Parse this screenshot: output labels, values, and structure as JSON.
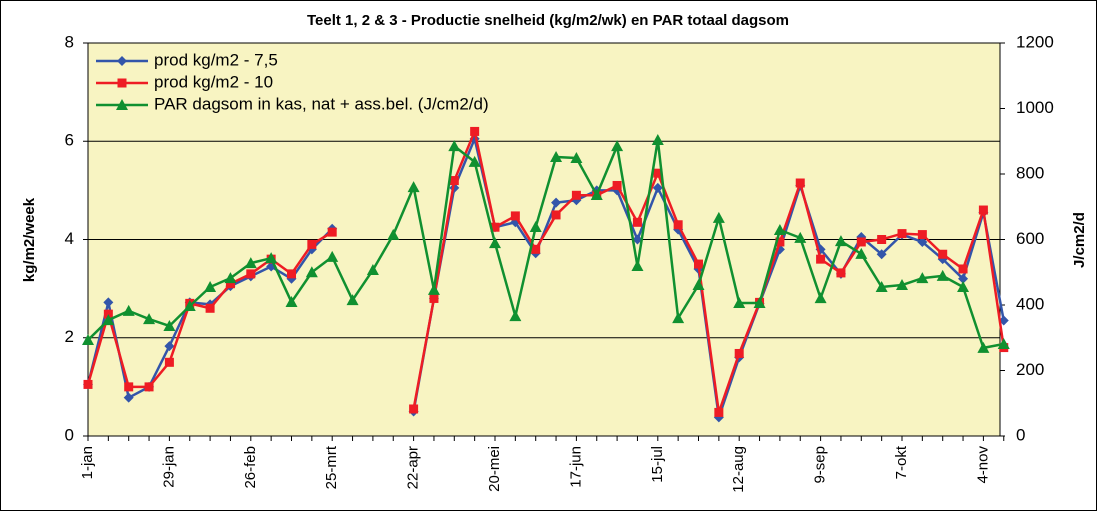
{
  "chart_data": {
    "type": "line",
    "title": "Teelt 1, 2 & 3 - Productie snelheid (kg/m2/wk) en PAR totaal dagsom",
    "ylabel": "kg/m2/week",
    "y2label": "J/cm2/d",
    "categories": [
      "1-jan",
      null,
      null,
      null,
      "29-jan",
      null,
      null,
      null,
      "26-feb",
      null,
      null,
      null,
      "25-mrt",
      null,
      null,
      null,
      "22-apr",
      null,
      null,
      null,
      "20-mei",
      null,
      null,
      null,
      "17-jun",
      null,
      null,
      null,
      "15-jul",
      null,
      null,
      null,
      "12-aug",
      null,
      null,
      null,
      "9-sep",
      null,
      null,
      null,
      "7-okt",
      null,
      null,
      null,
      "4-nov",
      null
    ],
    "ylim": [
      0,
      8
    ],
    "yticks": [
      0,
      2,
      4,
      6,
      8
    ],
    "y2lim": [
      0,
      1200
    ],
    "y2ticks": [
      0,
      200,
      400,
      600,
      800,
      1000,
      1200
    ],
    "grid": true,
    "legend": "upper left",
    "series": [
      {
        "name": "prod kg/m2 - 7,5",
        "color": "#3355aa",
        "marker": "diamond",
        "values": [
          1.05,
          2.72,
          0.78,
          1.0,
          1.83,
          2.72,
          2.68,
          3.05,
          3.25,
          3.45,
          3.2,
          3.8,
          4.22,
          null,
          null,
          null,
          0.5,
          2.8,
          5.05,
          6.05,
          4.25,
          4.35,
          3.72,
          4.75,
          4.8,
          5.0,
          5.0,
          4.0,
          5.05,
          4.2,
          3.4,
          0.38,
          1.6,
          2.7,
          3.8,
          5.1,
          3.8,
          3.3,
          4.05,
          3.7,
          4.1,
          3.95,
          3.6,
          3.2,
          4.55,
          2.35
        ]
      },
      {
        "name": "prod kg/m2 - 10",
        "color": "#ee1c24",
        "marker": "square",
        "values": [
          1.05,
          2.48,
          1.0,
          1.0,
          1.5,
          2.7,
          2.6,
          3.1,
          3.3,
          3.6,
          3.3,
          3.9,
          4.15,
          null,
          null,
          null,
          0.55,
          2.8,
          5.2,
          6.2,
          4.25,
          4.48,
          3.8,
          4.5,
          4.9,
          4.9,
          5.1,
          4.35,
          5.35,
          4.3,
          3.5,
          0.48,
          1.68,
          2.72,
          3.95,
          5.15,
          3.6,
          3.32,
          3.95,
          4.0,
          4.12,
          4.1,
          3.7,
          3.4,
          4.6,
          1.8
        ]
      },
      {
        "name": "PAR dagsom in kas, nat + ass.bel. (J/cm2/d)",
        "color": "#109030",
        "marker": "triangle",
        "axis": "y2",
        "values": [
          293,
          354,
          382,
          357,
          336,
          397,
          455,
          482,
          528,
          543,
          409,
          500,
          547,
          415,
          507,
          614,
          760,
          446,
          885,
          837,
          589,
          366,
          638,
          852,
          849,
          736,
          885,
          519,
          904,
          360,
          461,
          666,
          406,
          406,
          629,
          605,
          421,
          595,
          556,
          455,
          461,
          482,
          489,
          455,
          269,
          281
        ]
      }
    ]
  }
}
